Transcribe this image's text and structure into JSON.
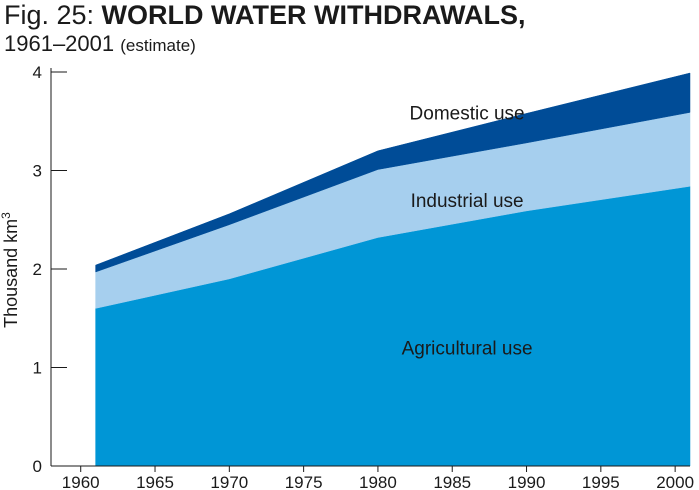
{
  "chart_data": {
    "type": "area",
    "stacked": true,
    "title_prefix": "Fig. 25: ",
    "title_main": "WORLD WATER WITHDRAWALS,",
    "subtitle": "1961–2001",
    "subtitle_note": "(estimate)",
    "ylabel_main": "Thousand km",
    "ylabel_sup": "3",
    "xlabel": "",
    "ylim": [
      0,
      4
    ],
    "xlim": [
      1958,
      2001
    ],
    "x_ticks": [
      1960,
      1965,
      1970,
      1975,
      1980,
      1985,
      1990,
      1995,
      2000
    ],
    "y_ticks": [
      0,
      1,
      2,
      3,
      4
    ],
    "x": [
      1961,
      1970,
      1980,
      1990,
      2001
    ],
    "series": [
      {
        "name": "Agricultural use",
        "color": "#0096d6",
        "values": [
          1.6,
          1.9,
          2.32,
          2.59,
          2.84
        ]
      },
      {
        "name": "Industrial use",
        "color": "#a6cfee",
        "values": [
          0.37,
          0.55,
          0.69,
          0.69,
          0.75
        ]
      },
      {
        "name": "Domestic use",
        "color": "#004c97",
        "values": [
          0.07,
          0.11,
          0.19,
          0.3,
          0.4
        ]
      }
    ],
    "annotations": [
      {
        "series": 2,
        "x": 1986,
        "y": 3.52
      },
      {
        "series": 1,
        "x": 1986,
        "y": 2.63
      },
      {
        "series": 0,
        "x": 1986,
        "y": 1.13
      }
    ]
  }
}
